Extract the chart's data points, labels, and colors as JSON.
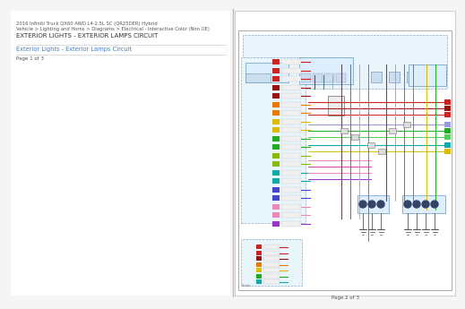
{
  "bg_color": "#f5f5f5",
  "page_bg": "#ffffff",
  "left_panel": {
    "header_line1": "2016 Infiniti Truck QX60 AWD L4-2.5L SC (QR25DER) Hybrid",
    "header_line2": "Vehicle > Lighting and Horns > Diagrams > Electrical - Interactive Color (Non OE)",
    "title": "EXTERIOR LIGHTS - EXTERIOR LAMPS CIRCUIT",
    "link_text": "Exterior Lights - Exterior Lamps Circuit",
    "page_text": "Page 1 of 3",
    "header_color": "#555555",
    "title_color": "#333333",
    "link_color": "#4a7fc1",
    "page_color": "#555555",
    "sep_color": "#cccccc"
  },
  "right_panel": {
    "page_text": "Page 2 of 3",
    "page_color": "#555555",
    "border_color": "#999999",
    "diagram_bg": "#ffffff"
  },
  "divider_color": "#bbbbbb",
  "wiring_colors": {
    "red": "#cc2222",
    "dark_red": "#991111",
    "green": "#22aa22",
    "lime": "#88bb00",
    "blue": "#4444cc",
    "light_blue": "#88bbee",
    "periwinkle": "#9999dd",
    "yellow": "#ddbb00",
    "yellow_green": "#99cc00",
    "pink": "#ee88bb",
    "magenta": "#cc44aa",
    "purple": "#9933cc",
    "orange": "#ee7700",
    "cyan": "#11aaaa",
    "teal": "#009988",
    "brown": "#996633",
    "gray": "#888888",
    "black": "#222222",
    "light_green": "#55cc55",
    "sky": "#66bbdd"
  }
}
